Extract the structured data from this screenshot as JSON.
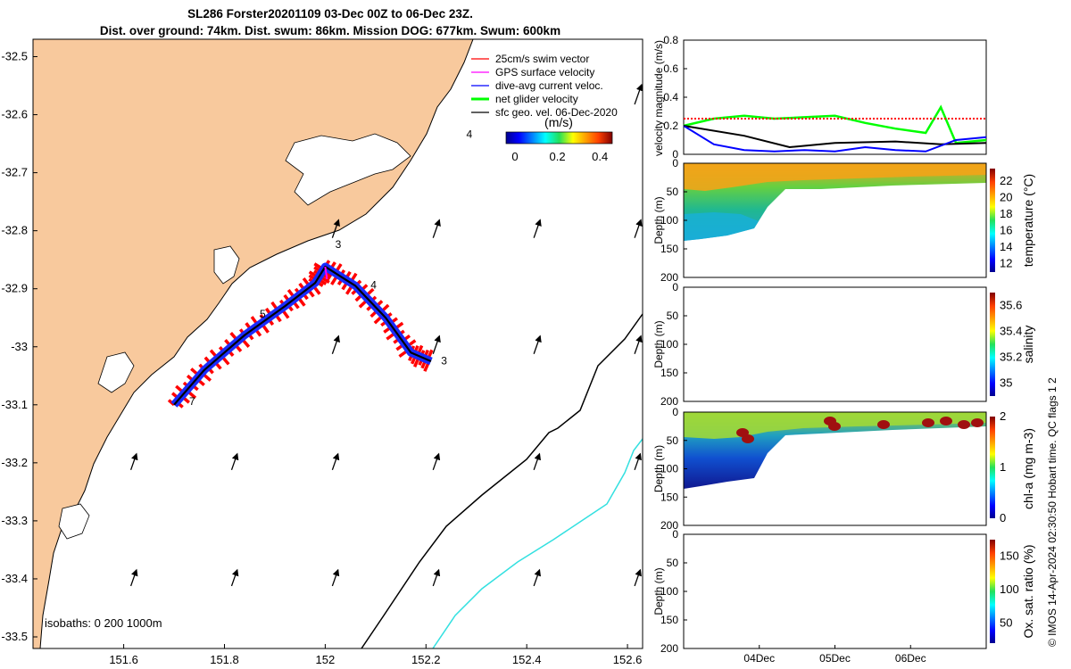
{
  "title": {
    "line1": "SL286 Forster20201109 03-Dec 00Z to 06-Dec 23Z.",
    "line2": "Dist. over ground: 74km. Dist. swum: 86km. Mission DOG: 677km. Swum: 600km"
  },
  "credit": "© IMOS 14-Apr-2024 02:30:50 Hobart time. QC flags 1  2",
  "isobaths_label": "isobaths: 0   200  1000m",
  "colors": {
    "land": "#f8c99d",
    "ocean": "#ffffff",
    "swim_vector": "#ff0000",
    "gps_velocity": "#ff00ff",
    "current_velocity": "#0000ff",
    "net_velocity": "#00ff00",
    "geo_velocity": "#000000",
    "isobath_200": "#000000",
    "isobath_1000": "#33e0e0"
  },
  "chart_data": [
    {
      "type": "map",
      "x_ticks": [
        "151.6",
        "151.8",
        "152",
        "152.2",
        "152.4",
        "152.6"
      ],
      "y_ticks": [
        "-32.5",
        "-32.6",
        "-32.7",
        "-32.8",
        "-32.9",
        "-33",
        "-33.1",
        "-33.2",
        "-33.3",
        "-33.4",
        "-33.5"
      ],
      "xlim": [
        151.42,
        152.63
      ],
      "ylim": [
        -33.52,
        -32.47
      ],
      "legend": [
        "25cm/s swim vector",
        "GPS surface velocity",
        "dive-avg current veloc.",
        "net glider velocity",
        "sfc geo. vel. 06-Dec-2020"
      ],
      "colorbar": {
        "label": "(m/s)",
        "ticks": [
          "0",
          "0.2",
          "0.4"
        ],
        "range": [
          0,
          0.5
        ]
      },
      "day_labels": [
        "4",
        "3",
        "5",
        "4",
        "3",
        "7"
      ],
      "track": [
        {
          "lon": 151.7,
          "lat": -33.1
        },
        {
          "lon": 151.76,
          "lat": -33.04
        },
        {
          "lon": 151.84,
          "lat": -32.98
        },
        {
          "lon": 151.92,
          "lat": -32.93
        },
        {
          "lon": 151.98,
          "lat": -32.89
        },
        {
          "lon": 152.0,
          "lat": -32.862
        },
        {
          "lon": 152.06,
          "lat": -32.895
        },
        {
          "lon": 152.12,
          "lat": -32.95
        },
        {
          "lon": 152.17,
          "lat": -33.01
        },
        {
          "lon": 152.21,
          "lat": -33.025
        }
      ]
    },
    {
      "type": "line",
      "ylabel": "velocity magnitude (m/s)",
      "ylim": [
        0,
        0.8
      ],
      "y_ticks": [
        "0",
        "0.2",
        "0.4",
        "0.6",
        "0.8"
      ],
      "series": [
        {
          "color": "#00ff00",
          "x": [
            0,
            0.1,
            0.2,
            0.3,
            0.4,
            0.5,
            0.6,
            0.7,
            0.8,
            0.85,
            0.9,
            1
          ],
          "y": [
            0.2,
            0.25,
            0.27,
            0.25,
            0.26,
            0.27,
            0.22,
            0.18,
            0.15,
            0.33,
            0.08,
            0.1
          ]
        },
        {
          "color": "#000000",
          "x": [
            0,
            0.2,
            0.35,
            0.5,
            0.7,
            0.85,
            1
          ],
          "y": [
            0.2,
            0.13,
            0.05,
            0.08,
            0.09,
            0.07,
            0.08
          ]
        },
        {
          "color": "#0000ff",
          "x": [
            0,
            0.1,
            0.2,
            0.3,
            0.4,
            0.5,
            0.6,
            0.7,
            0.8,
            0.9,
            1
          ],
          "y": [
            0.2,
            0.07,
            0.03,
            0.02,
            0.03,
            0.02,
            0.05,
            0.03,
            0.02,
            0.1,
            0.12
          ]
        },
        {
          "color": "#ff0000",
          "x": [
            0,
            1
          ],
          "y": [
            0.25,
            0.25
          ]
        }
      ]
    },
    {
      "type": "heatmap",
      "ylabel": "Depth (m)",
      "y_ticks": [
        "0",
        "50",
        "100",
        "150",
        "200"
      ],
      "colorbar_label": "temperature (°C)",
      "colorbar_ticks": [
        "12",
        "14",
        "16",
        "18",
        "20",
        "22"
      ],
      "colorbar_range": [
        11,
        23.5
      ]
    },
    {
      "type": "heatmap",
      "ylabel": "Depth (m)",
      "y_ticks": [
        "0",
        "50",
        "100",
        "150",
        "200"
      ],
      "colorbar_label": "salinity",
      "colorbar_ticks": [
        "35",
        "35.2",
        "35.4",
        "35.6"
      ],
      "colorbar_range": [
        34.9,
        35.7
      ]
    },
    {
      "type": "heatmap",
      "ylabel": "Depth (m)",
      "y_ticks": [
        "0",
        "50",
        "100",
        "150",
        "200"
      ],
      "colorbar_label": "chl-a (mg m-3)",
      "colorbar_ticks": [
        "0",
        "1",
        "2"
      ],
      "colorbar_range": [
        0,
        2
      ]
    },
    {
      "type": "heatmap",
      "ylabel": "Depth (m)",
      "y_ticks": [
        "0",
        "50",
        "100",
        "150",
        "200"
      ],
      "colorbar_label": "Ox. sat. ratio (%)",
      "colorbar_ticks": [
        "50",
        "100",
        "150"
      ],
      "colorbar_range": [
        20,
        175
      ],
      "x_ticks": [
        "04Dec",
        "05Dec",
        "06Dec"
      ]
    }
  ]
}
